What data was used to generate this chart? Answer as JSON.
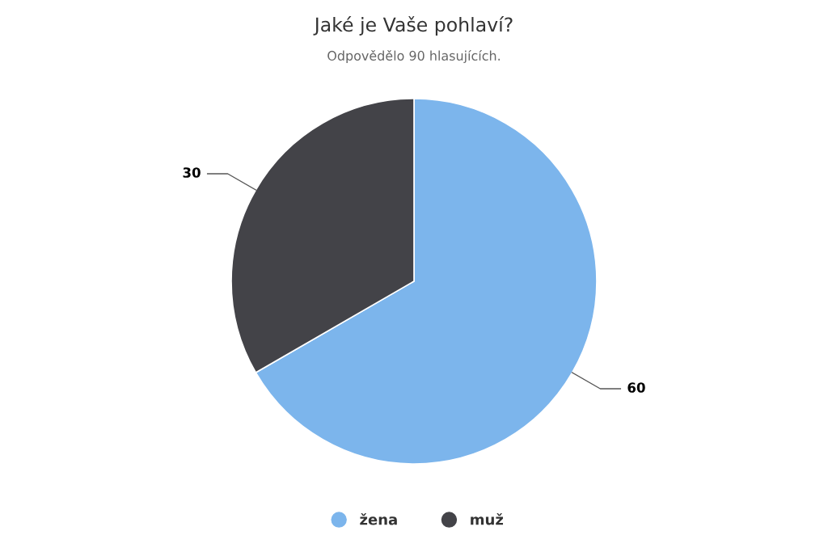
{
  "chart_data": {
    "type": "pie",
    "title": "Jaké je Vaše pohlaví?",
    "subtitle": "Odpovědělo 90 hlasujících.",
    "categories": [
      "žena",
      "muž"
    ],
    "values": [
      60,
      30
    ],
    "colors": [
      "#7cb5ec",
      "#434348"
    ],
    "data_labels": true,
    "legend": "bottom"
  }
}
